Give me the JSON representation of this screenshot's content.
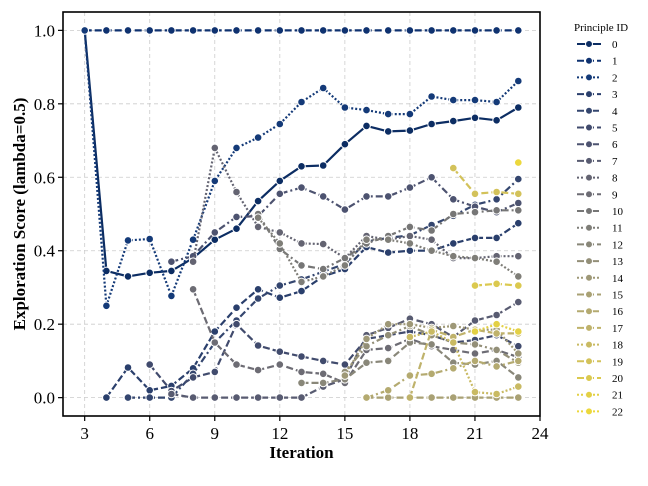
{
  "chart_data": {
    "type": "line",
    "title": "",
    "xlabel": "Iteration",
    "ylabel": "Exploration Score (lambda=0.5)",
    "xlim": [
      2,
      24
    ],
    "ylim": [
      -0.05,
      1.05
    ],
    "xticks": [
      3,
      6,
      9,
      12,
      15,
      18,
      21,
      24
    ],
    "yticks": [
      0.0,
      0.2,
      0.4,
      0.6,
      0.8,
      1.0
    ],
    "ytick_labels": [
      "0.0",
      "0.2",
      "0.4",
      "0.6",
      "0.8",
      "1.0"
    ],
    "grid": true,
    "legend": {
      "title": "Principle ID",
      "placement": "outside-right"
    },
    "series": [
      {
        "name": "0",
        "color": "#0c2d63",
        "dash": "solid",
        "x": [
          3,
          4,
          5,
          6,
          7,
          8,
          9,
          10,
          11,
          12,
          13,
          14,
          15,
          16,
          17,
          18,
          19,
          20,
          21,
          22,
          23
        ],
        "y": [
          1.0,
          0.345,
          0.33,
          0.34,
          0.345,
          0.38,
          0.43,
          0.46,
          0.535,
          0.59,
          0.63,
          0.632,
          0.69,
          0.74,
          0.725,
          0.727,
          0.745,
          0.753,
          0.762,
          0.755,
          0.79
        ]
      },
      {
        "name": "1",
        "color": "#0f3270",
        "dash": "dashed",
        "x": [
          3,
          4,
          5,
          6,
          7,
          8,
          9,
          10,
          11,
          12,
          13,
          14,
          15,
          16,
          17,
          18,
          19,
          20,
          21,
          22,
          23
        ],
        "y": [
          1,
          1,
          1,
          1,
          1,
          1,
          1,
          1,
          1,
          1,
          1,
          1,
          1,
          1,
          1,
          1,
          1,
          1,
          1,
          1,
          1
        ]
      },
      {
        "name": "2",
        "color": "#143a78",
        "dash": "dotted",
        "x": [
          3,
          4,
          5,
          6,
          7,
          8,
          9,
          10,
          11,
          12,
          13,
          14,
          15,
          16,
          17,
          18,
          19,
          20,
          21,
          22,
          23
        ],
        "y": [
          1.0,
          0.25,
          0.428,
          0.432,
          0.277,
          0.43,
          0.59,
          0.68,
          0.708,
          0.745,
          0.805,
          0.843,
          0.79,
          0.783,
          0.772,
          0.772,
          0.82,
          0.81,
          0.81,
          0.805,
          0.862
        ]
      },
      {
        "name": "3",
        "color": "#2a3f6c",
        "dash": "dashed",
        "x": [
          4,
          5,
          6,
          7,
          8,
          9,
          10,
          11,
          12,
          13,
          14,
          15,
          16,
          17,
          18,
          19,
          20,
          21,
          22,
          23
        ],
        "y": [
          0,
          0.082,
          0.02,
          0.032,
          0.08,
          0.18,
          0.245,
          0.295,
          0.272,
          0.29,
          0.33,
          0.35,
          0.41,
          0.395,
          0.4,
          0.4,
          0.42,
          0.435,
          0.435,
          0.475
        ]
      },
      {
        "name": "4",
        "color": "#34466f",
        "dash": "dashdot",
        "x": [
          5,
          6,
          7,
          8,
          9,
          10,
          11,
          12,
          13,
          14,
          15,
          16,
          17,
          18,
          19,
          20,
          21,
          22,
          23
        ],
        "y": [
          0,
          0,
          0,
          0.065,
          0.15,
          0.21,
          0.27,
          0.305,
          0.322,
          0.343,
          0.364,
          0.425,
          0.435,
          0.442,
          0.47,
          0.495,
          0.525,
          0.54,
          0.595
        ]
      },
      {
        "name": "5",
        "color": "#414b6d",
        "dash": "dashed",
        "x": [
          6,
          7,
          8,
          9,
          10,
          11,
          12,
          13,
          14,
          15,
          16,
          17,
          18,
          19,
          20,
          21,
          22,
          23
        ],
        "y": [
          0.09,
          0.018,
          0.055,
          0.07,
          0.2,
          0.142,
          0.125,
          0.112,
          0.1,
          0.09,
          0.16,
          0.17,
          0.18,
          0.17,
          0.15,
          0.157,
          0.17,
          0.14
        ]
      },
      {
        "name": "6",
        "color": "#4d5370",
        "dash": "dashdot",
        "x": [
          7,
          8,
          9,
          10,
          11,
          12,
          13,
          14,
          15,
          16,
          17,
          18,
          19,
          20,
          21,
          22,
          23
        ],
        "y": [
          0.37,
          0.385,
          0.45,
          0.492,
          0.494,
          0.555,
          0.572,
          0.548,
          0.512,
          0.548,
          0.548,
          0.572,
          0.6,
          0.54,
          0.52,
          0.505,
          0.53
        ]
      },
      {
        "name": "7",
        "color": "#585b71",
        "dash": "dashed",
        "x": [
          7,
          8,
          9,
          10,
          11,
          12,
          13,
          14,
          15,
          16,
          17,
          18,
          19,
          20,
          21,
          22,
          23
        ],
        "y": [
          0.01,
          0,
          0,
          0,
          0,
          0,
          0,
          0.03,
          0.05,
          0.17,
          0.19,
          0.215,
          0.2,
          0.165,
          0.21,
          0.225,
          0.26
        ]
      },
      {
        "name": "8",
        "color": "#646472",
        "dash": "dotted",
        "x": [
          8,
          9,
          10,
          11,
          12,
          13,
          14,
          15,
          16,
          17,
          18,
          19,
          20,
          21,
          22,
          23
        ],
        "y": [
          0.37,
          0.68,
          0.56,
          0.465,
          0.45,
          0.42,
          0.418,
          0.38,
          0.44,
          0.43,
          0.44,
          0.43,
          0.38,
          0.38,
          0.385,
          0.385
        ]
      },
      {
        "name": "9",
        "color": "#6d6c74",
        "dash": "dashed",
        "x": [
          8,
          9,
          10,
          11,
          12,
          13,
          14,
          15,
          16,
          17,
          18,
          19,
          20,
          21,
          22,
          23
        ],
        "y": [
          0.295,
          0.15,
          0.09,
          0.075,
          0.09,
          0.07,
          0.065,
          0.04,
          0.13,
          0.135,
          0.16,
          0.14,
          0.13,
          0.12,
          0.13,
          0.11
        ]
      },
      {
        "name": "10",
        "color": "#767676",
        "dash": "dashdot",
        "x": [
          11,
          12,
          13,
          14,
          15,
          16,
          17,
          18,
          19,
          20,
          21,
          22,
          23
        ],
        "y": [
          0.5,
          0.405,
          0.36,
          0.35,
          0.38,
          0.42,
          0.44,
          0.465,
          0.455,
          0.5,
          0.505,
          0.51,
          0.51
        ]
      },
      {
        "name": "11",
        "color": "#7f7e78",
        "dash": "dotted",
        "x": [
          11,
          12,
          13,
          14,
          15,
          16,
          17,
          18,
          19,
          20,
          21,
          22,
          23
        ],
        "y": [
          0.49,
          0.42,
          0.315,
          0.33,
          0.36,
          0.43,
          0.43,
          0.42,
          0.4,
          0.385,
          0.38,
          0.37,
          0.33
        ]
      },
      {
        "name": "12",
        "color": "#898779",
        "dash": "dashed",
        "x": [
          13,
          14,
          15,
          16,
          17,
          18,
          19,
          20,
          21,
          22,
          23
        ],
        "y": [
          0.04,
          0.04,
          0.05,
          0.095,
          0.1,
          0.15,
          0.145,
          0.095,
          0.09,
          0.1,
          0.055
        ]
      },
      {
        "name": "13",
        "color": "#938f78",
        "dash": "dashdot",
        "x": [
          15,
          16,
          17,
          18,
          19,
          20,
          21,
          22,
          23
        ],
        "y": [
          0.07,
          0.14,
          0.17,
          0.195,
          0.17,
          0.15,
          0.145,
          0.13,
          0.095
        ]
      },
      {
        "name": "14",
        "color": "#9e9877",
        "dash": "dotted",
        "x": [
          15,
          16,
          17,
          18,
          19,
          20,
          21,
          22,
          23
        ],
        "y": [
          0.06,
          0.16,
          0.2,
          0.2,
          0.19,
          0.195,
          0.185,
          0.185,
          0.12
        ]
      },
      {
        "name": "15",
        "color": "#a9a174",
        "dash": "dashed",
        "x": [
          16,
          17,
          18,
          19,
          20,
          21,
          22,
          23
        ],
        "y": [
          0,
          0,
          0,
          0,
          0,
          0,
          0,
          0
        ]
      },
      {
        "name": "16",
        "color": "#b4aa70",
        "dash": "dashdot",
        "x": [
          16,
          17,
          18,
          19,
          20,
          21,
          22,
          23
        ],
        "y": [
          0,
          0.02,
          0.06,
          0.065,
          0.08,
          0.1,
          0.085,
          0.1
        ]
      },
      {
        "name": "17",
        "color": "#bfb26b",
        "dash": "dashed",
        "x": [
          18,
          19,
          20,
          21,
          22,
          23
        ],
        "y": [
          0,
          0.185,
          0.165,
          0.185,
          0.175,
          0.175
        ]
      },
      {
        "name": "18",
        "color": "#c9ba63",
        "dash": "dotted",
        "x": [
          18,
          19,
          20,
          21,
          22,
          23
        ],
        "y": [
          0.165,
          0.18,
          0.15,
          0.015,
          0.01,
          0.03
        ]
      },
      {
        "name": "19",
        "color": "#d3c25a",
        "dash": "dashed",
        "x": [
          20,
          21,
          22,
          23
        ],
        "y": [
          0.625,
          0.555,
          0.56,
          0.555
        ]
      },
      {
        "name": "20",
        "color": "#dbc94f",
        "dash": "dashed",
        "x": [
          21,
          22,
          23
        ],
        "y": [
          0.305,
          0.31,
          0.305
        ]
      },
      {
        "name": "21",
        "color": "#e3d045",
        "dash": "dotted",
        "x": [
          21,
          22,
          23
        ],
        "y": [
          0.18,
          0.2,
          0.18
        ]
      },
      {
        "name": "22",
        "color": "#ecd83c",
        "dash": "dotted",
        "x": [
          23
        ],
        "y": [
          0.64
        ]
      }
    ]
  }
}
